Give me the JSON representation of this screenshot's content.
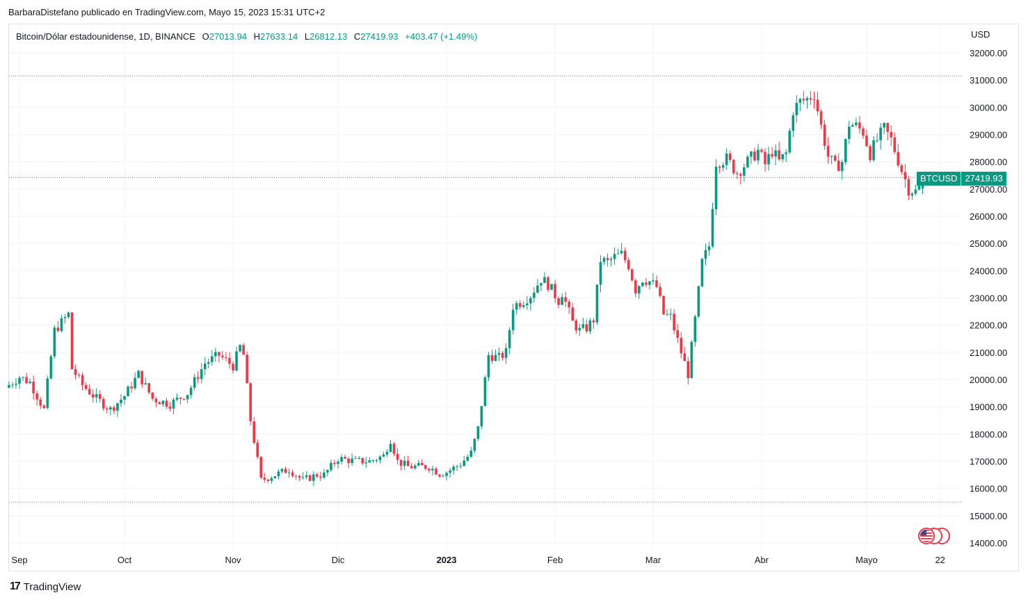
{
  "header": {
    "publisher": "BarbaraDistefano publicado en TradingView.com, Mayo 15, 2023 15:31 UTC+2"
  },
  "legend": {
    "symbol": "Bitcoin/Dólar estadounidense, 1D, BINANCE",
    "o_label": "O",
    "o_value": "27013.94",
    "h_label": "H",
    "h_value": "27633.14",
    "l_label": "L",
    "l_value": "26812.13",
    "c_label": "C",
    "c_value": "27419.93",
    "change": "+403.47 (+1.49%)"
  },
  "currency": "USD",
  "last_price": {
    "symbol": "BTCUSD",
    "value": "27419.93"
  },
  "footer": {
    "brand": "TradingView",
    "logo_mark": "17"
  },
  "colors": {
    "up": "#089981",
    "down": "#f23645",
    "grid": "#f0f3fa"
  },
  "chart_data": {
    "type": "candlestick",
    "title": "Bitcoin/Dólar estadounidense, 1D, BINANCE",
    "ylim": [
      14000,
      32500
    ],
    "y_ticks": [
      "32000.00",
      "31000.00",
      "30000.00",
      "29000.00",
      "28000.00",
      "27000.00",
      "26000.00",
      "25000.00",
      "24000.00",
      "23000.00",
      "22000.00",
      "21000.00",
      "20000.00",
      "19000.00",
      "18000.00",
      "17000.00",
      "16000.00",
      "15000.00",
      "14000.00"
    ],
    "x_ticks": [
      {
        "label": "Sep",
        "day": 0,
        "bold": false
      },
      {
        "label": "Oct",
        "day": 30,
        "bold": false
      },
      {
        "label": "Nov",
        "day": 61,
        "bold": false
      },
      {
        "label": "Dic",
        "day": 91,
        "bold": false
      },
      {
        "label": "2023",
        "day": 122,
        "bold": true
      },
      {
        "label": "Feb",
        "day": 153,
        "bold": false
      },
      {
        "label": "Mar",
        "day": 181,
        "bold": false
      },
      {
        "label": "Abr",
        "day": 212,
        "bold": false
      },
      {
        "label": "Mayo",
        "day": 242,
        "bold": false
      },
      {
        "label": "22",
        "day": 263,
        "bold": false
      }
    ],
    "reference_lines": [
      31150,
      27420,
      15500
    ],
    "grid": true,
    "waypoints": [
      [
        -3,
        19800
      ],
      [
        0,
        20100
      ],
      [
        3,
        19900
      ],
      [
        7,
        18900
      ],
      [
        10,
        21800
      ],
      [
        14,
        22400
      ],
      [
        15,
        20400
      ],
      [
        18,
        19800
      ],
      [
        22,
        19300
      ],
      [
        26,
        18900
      ],
      [
        30,
        19400
      ],
      [
        34,
        20200
      ],
      [
        38,
        19300
      ],
      [
        43,
        19100
      ],
      [
        48,
        19500
      ],
      [
        53,
        20600
      ],
      [
        57,
        20900
      ],
      [
        61,
        20500
      ],
      [
        63,
        21200
      ],
      [
        64,
        20900
      ],
      [
        66,
        18500
      ],
      [
        69,
        16300
      ],
      [
        73,
        16500
      ],
      [
        77,
        16700
      ],
      [
        81,
        16300
      ],
      [
        85,
        16500
      ],
      [
        87,
        16500
      ],
      [
        91,
        17100
      ],
      [
        96,
        17000
      ],
      [
        100,
        17000
      ],
      [
        104,
        17200
      ],
      [
        106,
        17800
      ],
      [
        108,
        17000
      ],
      [
        111,
        16800
      ],
      [
        114,
        16800
      ],
      [
        117,
        16800
      ],
      [
        120,
        16550
      ],
      [
        122,
        16600
      ],
      [
        126,
        16900
      ],
      [
        129,
        17300
      ],
      [
        131,
        18200
      ],
      [
        134,
        20900
      ],
      [
        137,
        20800
      ],
      [
        139,
        21000
      ],
      [
        141,
        22700
      ],
      [
        144,
        22900
      ],
      [
        146,
        23100
      ],
      [
        149,
        23700
      ],
      [
        151,
        23500
      ],
      [
        154,
        22900
      ],
      [
        155,
        23200
      ],
      [
        158,
        22100
      ],
      [
        160,
        21800
      ],
      [
        162,
        21900
      ],
      [
        164,
        22200
      ],
      [
        166,
        24400
      ],
      [
        168,
        24300
      ],
      [
        170,
        24500
      ],
      [
        172,
        24600
      ],
      [
        174,
        24200
      ],
      [
        176,
        23300
      ],
      [
        178,
        23700
      ],
      [
        180,
        23600
      ],
      [
        182,
        23400
      ],
      [
        184,
        22400
      ],
      [
        186,
        22300
      ],
      [
        189,
        21000
      ],
      [
        191,
        20200
      ],
      [
        193,
        22200
      ],
      [
        195,
        24300
      ],
      [
        197,
        24900
      ],
      [
        199,
        28000
      ],
      [
        202,
        28100
      ],
      [
        205,
        27600
      ],
      [
        208,
        28000
      ],
      [
        211,
        28400
      ],
      [
        213,
        27900
      ],
      [
        215,
        28400
      ],
      [
        217,
        28000
      ],
      [
        219,
        28300
      ],
      [
        221,
        29900
      ],
      [
        223,
        30200
      ],
      [
        225,
        30300
      ],
      [
        227,
        30500
      ],
      [
        229,
        29300
      ],
      [
        231,
        28200
      ],
      [
        233,
        27800
      ],
      [
        235,
        28000
      ],
      [
        237,
        29400
      ],
      [
        239,
        29300
      ],
      [
        241,
        29100
      ],
      [
        243,
        28300
      ],
      [
        245,
        28800
      ],
      [
        247,
        29200
      ],
      [
        249,
        28800
      ],
      [
        252,
        27700
      ],
      [
        254,
        27000
      ],
      [
        256,
        26900
      ],
      [
        258,
        27419.93
      ]
    ]
  }
}
